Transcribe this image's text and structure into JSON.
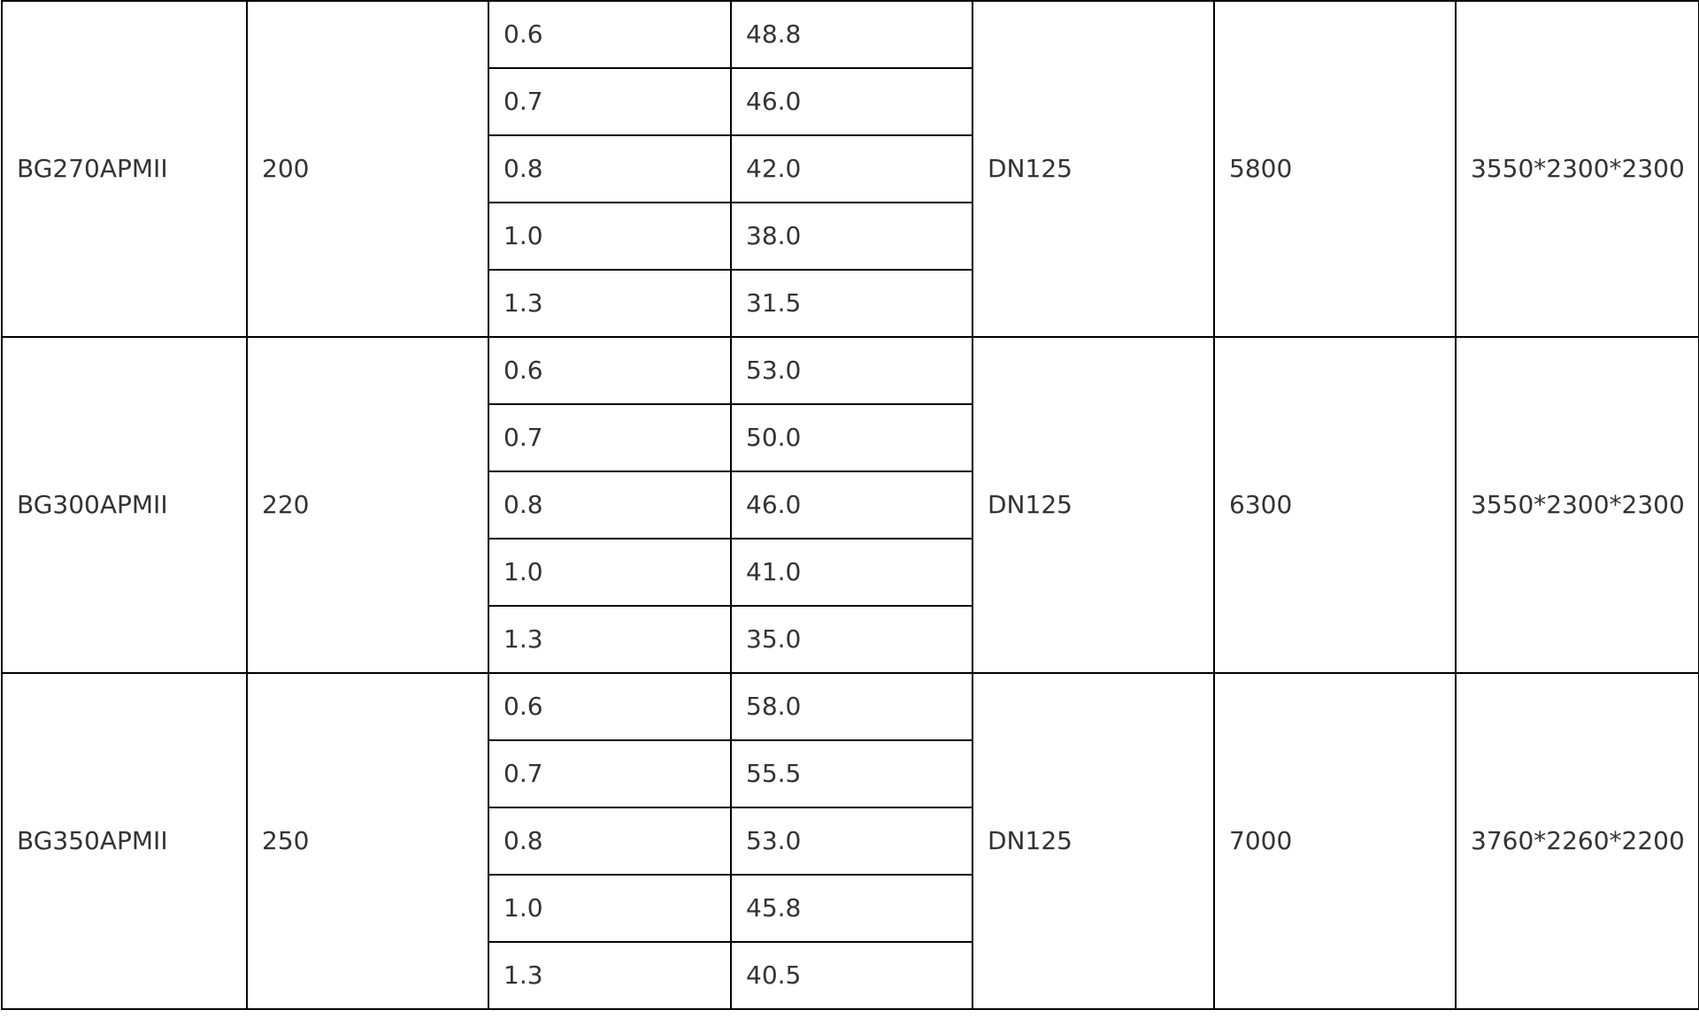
{
  "table": {
    "groups": [
      {
        "model": "BG270APMII",
        "col2": "200",
        "rows": [
          [
            "0.6",
            "48.8"
          ],
          [
            "0.7",
            "46.0"
          ],
          [
            "0.8",
            "42.0"
          ],
          [
            "1.0",
            "38.0"
          ],
          [
            "1.3",
            "31.5"
          ]
        ],
        "outlet": "DN125",
        "col6": "5800",
        "dimensions": "3550*2300*2300"
      },
      {
        "model": "BG300APMII",
        "col2": "220",
        "rows": [
          [
            "0.6",
            "53.0"
          ],
          [
            "0.7",
            "50.0"
          ],
          [
            "0.8",
            "46.0"
          ],
          [
            "1.0",
            "41.0"
          ],
          [
            "1.3",
            "35.0"
          ]
        ],
        "outlet": "DN125",
        "col6": "6300",
        "dimensions": "3550*2300*2300"
      },
      {
        "model": "BG350APMII",
        "col2": "250",
        "rows": [
          [
            "0.6",
            "58.0"
          ],
          [
            "0.7",
            "55.5"
          ],
          [
            "0.8",
            "53.0"
          ],
          [
            "1.0",
            "45.8"
          ],
          [
            "1.3",
            "40.5"
          ]
        ],
        "outlet": "DN125",
        "col6": "7000",
        "dimensions": "3760*2260*2200"
      }
    ]
  }
}
